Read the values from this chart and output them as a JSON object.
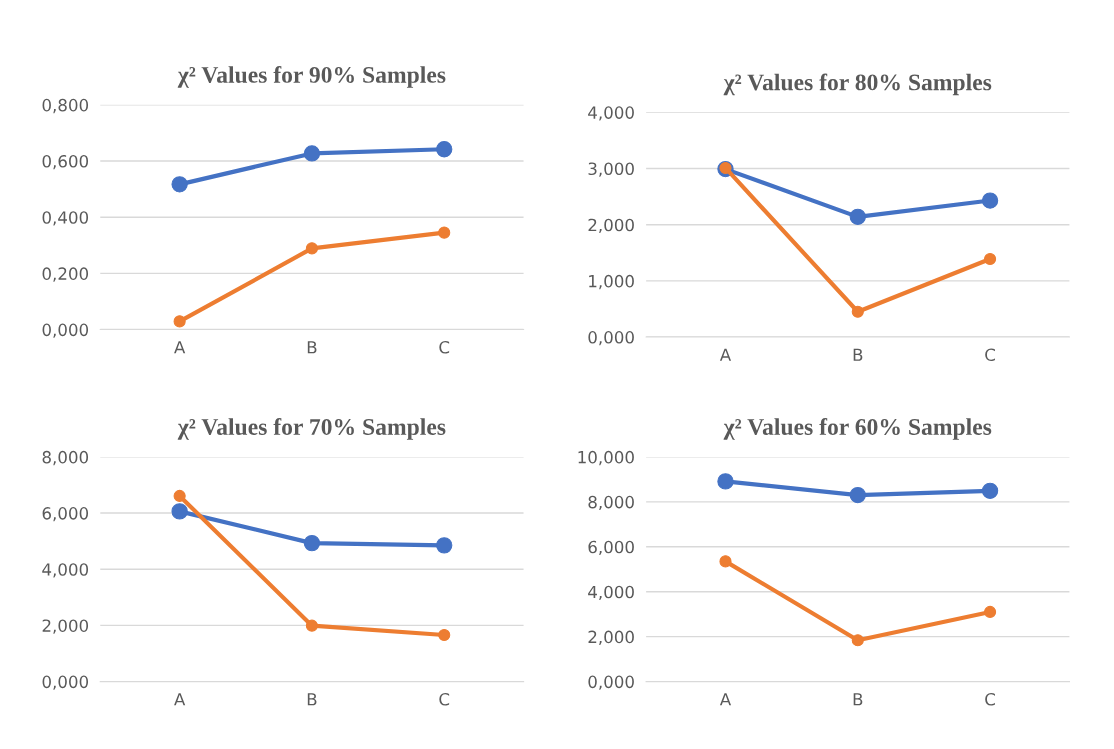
{
  "chart_data": [
    {
      "type": "line",
      "title": "χ² Values for 90% Samples",
      "categories": [
        "A",
        "B",
        "C"
      ],
      "marker": "circle",
      "grid": "y",
      "legend": false,
      "ylim": [
        0,
        0.8
      ],
      "yticks": [
        {
          "value": 0,
          "label": "0,000"
        },
        {
          "value": 0.2,
          "label": "0,200"
        },
        {
          "value": 0.4,
          "label": "0,400"
        },
        {
          "value": 0.6,
          "label": "0,600"
        },
        {
          "value": 0.8,
          "label": "0,800"
        }
      ],
      "series": [
        {
          "color": "#4472c4",
          "values": [
            0.517,
            0.627,
            0.642
          ]
        },
        {
          "color": "#ed7d31",
          "values": [
            0.029,
            0.289,
            0.345
          ]
        }
      ]
    },
    {
      "type": "line",
      "title": "χ² Values for 80% Samples",
      "categories": [
        "A",
        "B",
        "C"
      ],
      "marker": "circle",
      "grid": "y",
      "legend": false,
      "ylim": [
        0,
        4
      ],
      "yticks": [
        {
          "value": 0,
          "label": "0,000"
        },
        {
          "value": 1,
          "label": "1,000"
        },
        {
          "value": 2,
          "label": "2,000"
        },
        {
          "value": 3,
          "label": "3,000"
        },
        {
          "value": 4,
          "label": "4,000"
        }
      ],
      "series": [
        {
          "color": "#4472c4",
          "values": [
            2.99,
            2.14,
            2.43
          ]
        },
        {
          "color": "#ed7d31",
          "values": [
            3.01,
            0.45,
            1.39
          ]
        }
      ]
    },
    {
      "type": "line",
      "title": "χ² Values for 70% Samples",
      "categories": [
        "A",
        "B",
        "C"
      ],
      "marker": "circle",
      "grid": "y",
      "legend": false,
      "ylim": [
        0,
        8
      ],
      "yticks": [
        {
          "value": 0,
          "label": "0,000"
        },
        {
          "value": 2,
          "label": "2,000"
        },
        {
          "value": 4,
          "label": "4,000"
        },
        {
          "value": 6,
          "label": "6,000"
        },
        {
          "value": 8,
          "label": "8,000"
        }
      ],
      "series": [
        {
          "color": "#4472c4",
          "values": [
            6.06,
            4.93,
            4.85
          ]
        },
        {
          "color": "#ed7d31",
          "values": [
            6.61,
            1.99,
            1.66
          ]
        }
      ]
    },
    {
      "type": "line",
      "title": "χ² Values for 60% Samples",
      "categories": [
        "A",
        "B",
        "C"
      ],
      "marker": "circle",
      "grid": "y",
      "legend": false,
      "ylim": [
        0,
        10
      ],
      "yticks": [
        {
          "value": 0,
          "label": "0,000"
        },
        {
          "value": 2,
          "label": "2,000"
        },
        {
          "value": 4,
          "label": "4,000"
        },
        {
          "value": 6,
          "label": "6,000"
        },
        {
          "value": 8,
          "label": "8,000"
        },
        {
          "value": 10,
          "label": "10,000"
        }
      ],
      "series": [
        {
          "color": "#4472c4",
          "values": [
            8.91,
            8.3,
            8.49
          ]
        },
        {
          "color": "#ed7d31",
          "values": [
            5.35,
            1.84,
            3.1
          ]
        }
      ]
    }
  ]
}
